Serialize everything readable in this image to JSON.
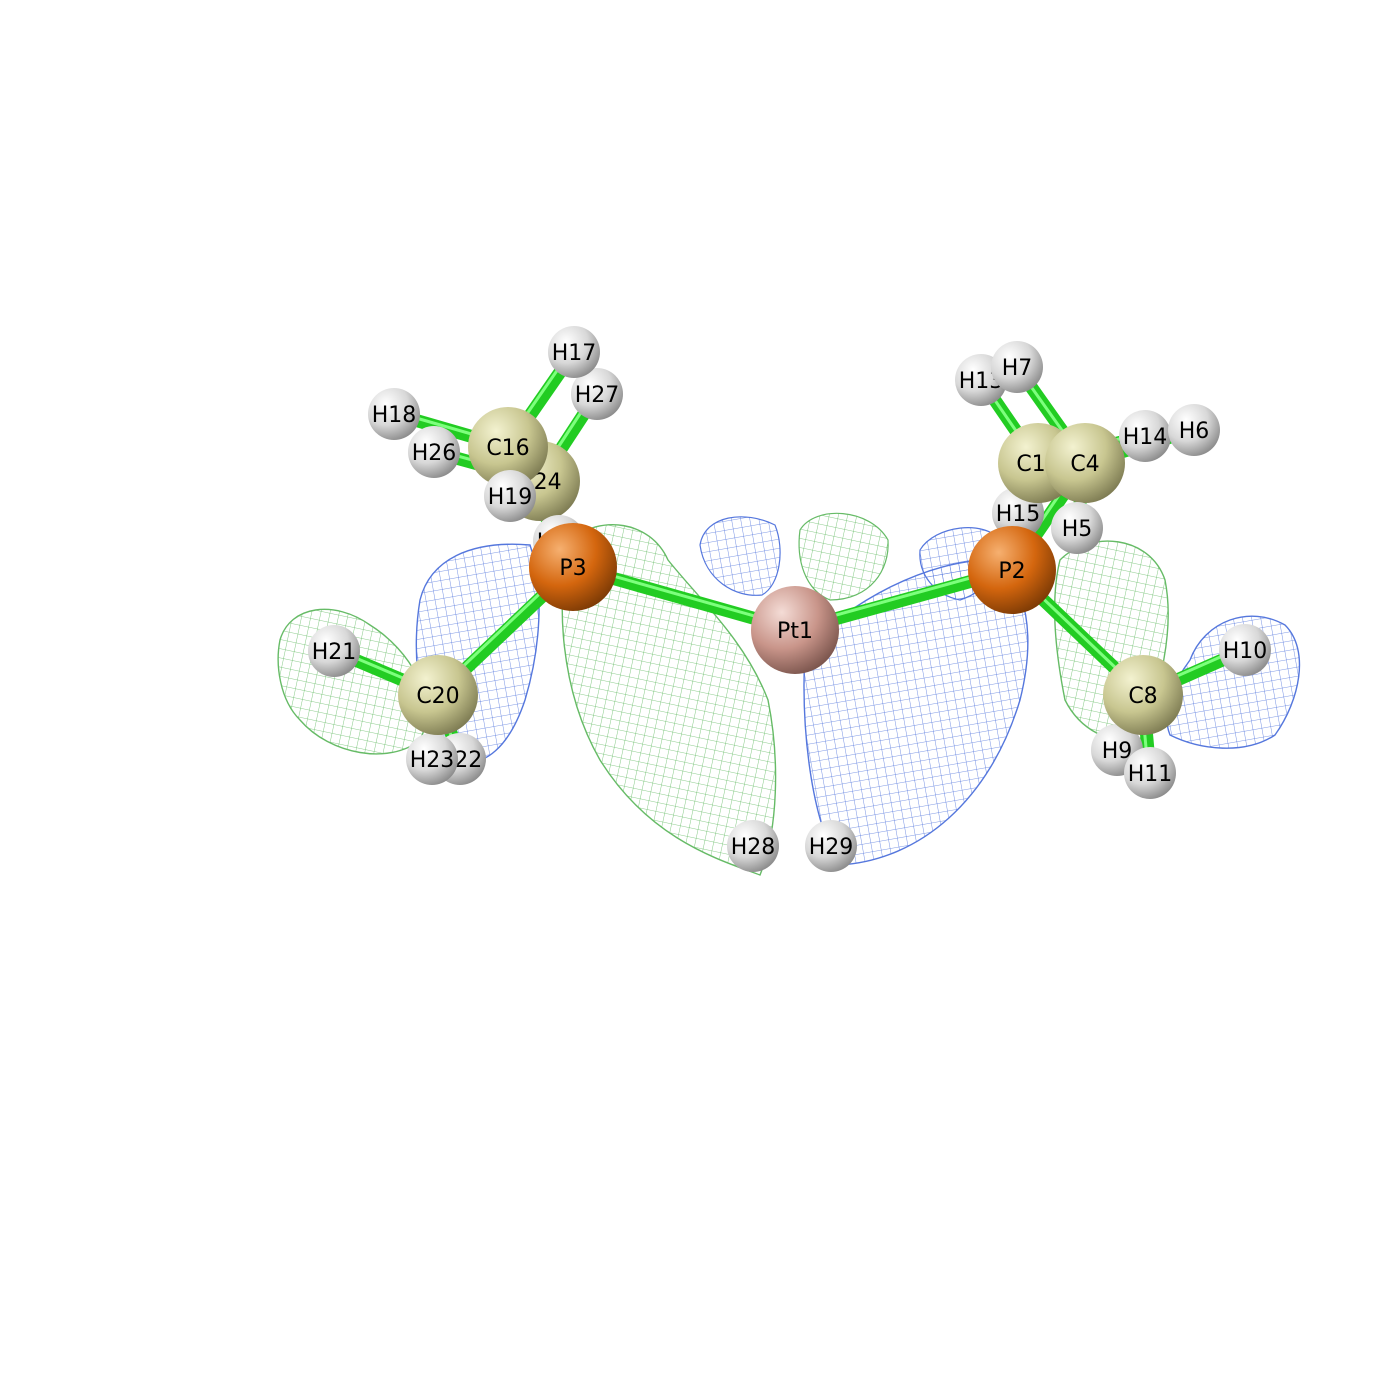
{
  "scene": {
    "background": "#ffffff",
    "bond_color": "#22cc22",
    "positive_lobe_color": "#66bb66",
    "negative_lobe_color": "#5577dd"
  },
  "atom_colors": {
    "Pt": "#c9958a",
    "P": "#d4660e",
    "C": "#c8c690",
    "H": "#d8d8d8"
  },
  "atoms": [
    {
      "id": "Pt1",
      "label": "Pt1",
      "element": "Pt"
    },
    {
      "id": "P2",
      "label": "P2",
      "element": "P"
    },
    {
      "id": "P3",
      "label": "P3",
      "element": "P"
    },
    {
      "id": "C4",
      "label": "C4",
      "element": "C"
    },
    {
      "id": "H5",
      "label": "H5",
      "element": "H"
    },
    {
      "id": "H6",
      "label": "H6",
      "element": "H"
    },
    {
      "id": "H7",
      "label": "H7",
      "element": "H"
    },
    {
      "id": "C8",
      "label": "C8",
      "element": "C"
    },
    {
      "id": "H9",
      "label": "H9",
      "element": "H"
    },
    {
      "id": "H10",
      "label": "H10",
      "element": "H"
    },
    {
      "id": "H11",
      "label": "H11",
      "element": "H"
    },
    {
      "id": "C12",
      "label": "C12",
      "element": "C"
    },
    {
      "id": "H13",
      "label": "H13",
      "element": "H"
    },
    {
      "id": "H14",
      "label": "H14",
      "element": "H"
    },
    {
      "id": "H15",
      "label": "H15",
      "element": "H"
    },
    {
      "id": "C16",
      "label": "C16",
      "element": "C"
    },
    {
      "id": "H17",
      "label": "H17",
      "element": "H"
    },
    {
      "id": "H18",
      "label": "H18",
      "element": "H"
    },
    {
      "id": "H19",
      "label": "H19",
      "element": "H"
    },
    {
      "id": "C20",
      "label": "C20",
      "element": "C"
    },
    {
      "id": "H21",
      "label": "H21",
      "element": "H"
    },
    {
      "id": "H22",
      "label": "H22",
      "element": "H"
    },
    {
      "id": "H23",
      "label": "H23",
      "element": "H"
    },
    {
      "id": "C24",
      "label": "C24",
      "element": "C"
    },
    {
      "id": "H25",
      "label": "H25",
      "element": "H"
    },
    {
      "id": "H26",
      "label": "H26",
      "element": "H"
    },
    {
      "id": "H27",
      "label": "H27",
      "element": "H"
    },
    {
      "id": "H28",
      "label": "H28",
      "element": "H"
    },
    {
      "id": "H29",
      "label": "H29",
      "element": "H"
    }
  ],
  "bonds": [
    [
      "Pt1",
      "P2"
    ],
    [
      "Pt1",
      "P3"
    ],
    [
      "P2",
      "C4"
    ],
    [
      "P2",
      "C8"
    ],
    [
      "P2",
      "C12"
    ],
    [
      "P3",
      "C16"
    ],
    [
      "P3",
      "C20"
    ],
    [
      "P3",
      "C24"
    ],
    [
      "C4",
      "H5"
    ],
    [
      "C4",
      "H6"
    ],
    [
      "C4",
      "H7"
    ],
    [
      "C8",
      "H9"
    ],
    [
      "C8",
      "H10"
    ],
    [
      "C8",
      "H11"
    ],
    [
      "C12",
      "H13"
    ],
    [
      "C12",
      "H14"
    ],
    [
      "C12",
      "H15"
    ],
    [
      "C16",
      "H17"
    ],
    [
      "C16",
      "H18"
    ],
    [
      "C16",
      "H19"
    ],
    [
      "C20",
      "H21"
    ],
    [
      "C20",
      "H22"
    ],
    [
      "C20",
      "H23"
    ],
    [
      "C24",
      "H25"
    ],
    [
      "C24",
      "H26"
    ],
    [
      "C24",
      "H27"
    ]
  ]
}
